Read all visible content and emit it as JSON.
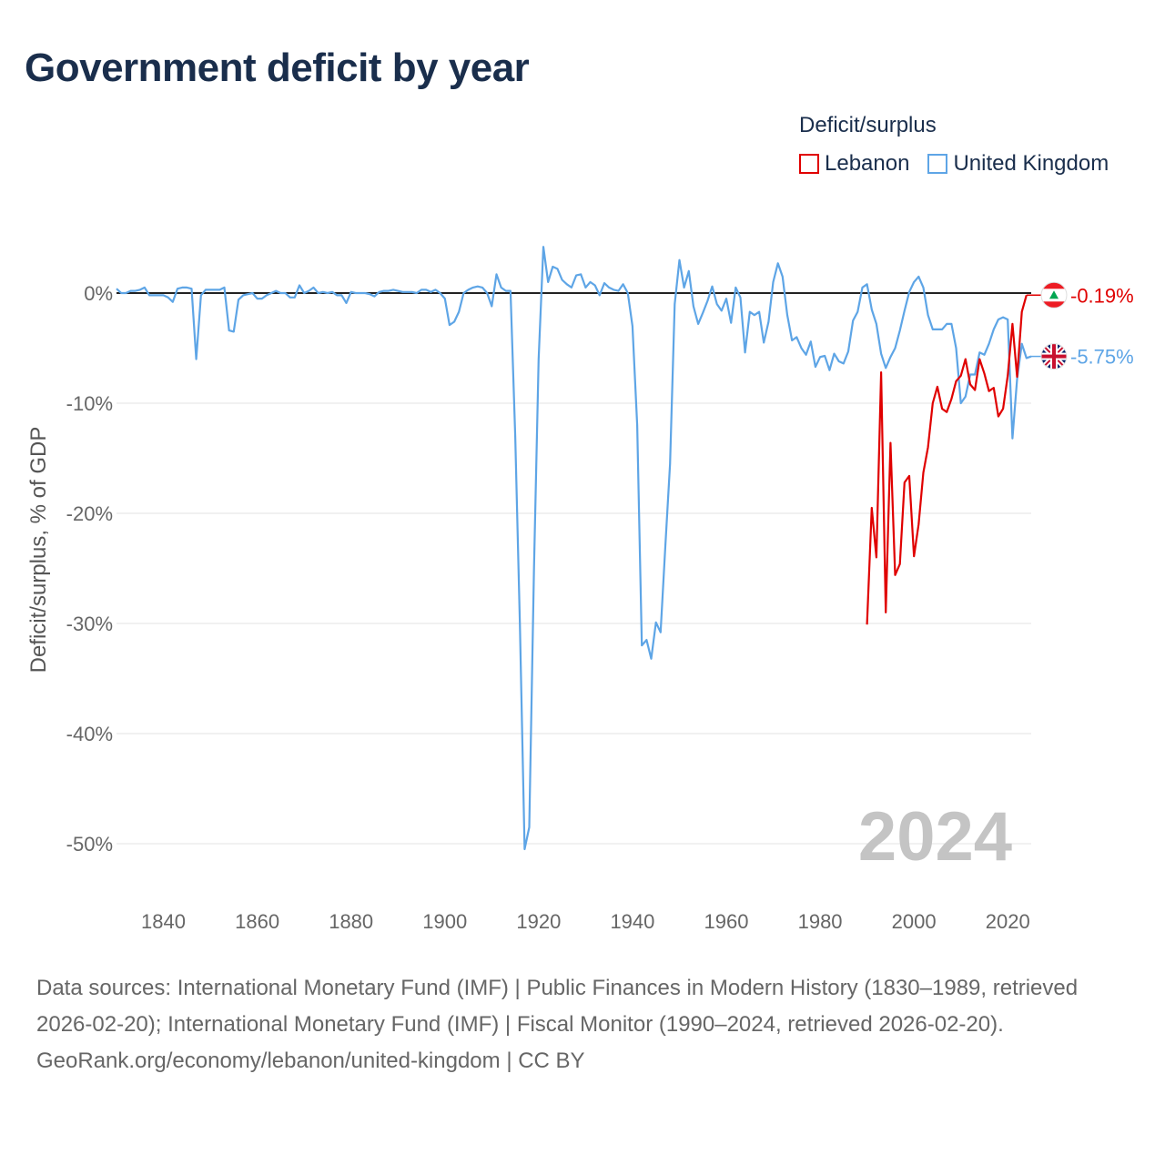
{
  "title": "Government deficit by year",
  "legend": {
    "title": "Deficit/surplus",
    "items": [
      {
        "label": "Lebanon",
        "color": "#e00000"
      },
      {
        "label": "United Kingdom",
        "color": "#5ea5e6"
      }
    ]
  },
  "footer": {
    "sources": "Data sources: International Monetary Fund (IMF) | Public Finances in Modern History (1830–1989, retrieved 2026-02-20); International Monetary Fund (IMF) | Fiscal Monitor (1990–2024, retrieved 2026-02-20).",
    "credit": "GeoRank.org/economy/lebanon/united-kingdom | CC BY"
  },
  "chart_data": {
    "type": "line",
    "title": "Government deficit by year",
    "xlabel": "",
    "ylabel": "Deficit/surplus, % of GDP",
    "xlim": [
      1830,
      2025
    ],
    "ylim": [
      -55,
      5
    ],
    "xticks": [
      1840,
      1860,
      1880,
      1900,
      1920,
      1940,
      1960,
      1980,
      2000,
      2020
    ],
    "xtick_labels": [
      "1840",
      "1860",
      "1880",
      "1900",
      "1920",
      "1940",
      "1960",
      "1980",
      "2000",
      "2020"
    ],
    "yticks": [
      0,
      -10,
      -20,
      -30,
      -40,
      -50
    ],
    "ytick_labels": [
      "0%",
      "-10%",
      "-20%",
      "-30%",
      "-40%",
      "-50%"
    ],
    "grid": true,
    "year_watermark": "2024",
    "series": [
      {
        "name": "United Kingdom",
        "color": "#5ea5e6",
        "end_label": "-5.75%",
        "flag": "united-kingdom-flag-icon",
        "x_start": 1830,
        "values": [
          0.4,
          0.0,
          0.0,
          0.2,
          0.2,
          0.3,
          0.5,
          -0.2,
          -0.2,
          -0.2,
          -0.2,
          -0.4,
          -0.8,
          0.4,
          0.5,
          0.5,
          0.4,
          -6.0,
          -0.2,
          0.3,
          0.3,
          0.3,
          0.3,
          0.5,
          -3.4,
          -3.5,
          -0.6,
          -0.2,
          -0.1,
          0.0,
          -0.5,
          -0.5,
          -0.2,
          0.0,
          0.2,
          0.0,
          0.0,
          -0.4,
          -0.4,
          0.7,
          0.0,
          0.2,
          0.5,
          0.0,
          0.1,
          0.0,
          0.1,
          -0.2,
          -0.2,
          -0.9,
          0.1,
          0.0,
          0.0,
          0.0,
          -0.1,
          -0.3,
          0.1,
          0.2,
          0.2,
          0.3,
          0.2,
          0.1,
          0.1,
          0.1,
          0.0,
          0.3,
          0.3,
          0.1,
          0.3,
          0.0,
          -0.5,
          -2.9,
          -2.6,
          -1.7,
          0.0,
          0.3,
          0.5,
          0.6,
          0.5,
          0.0,
          -1.2,
          1.7,
          0.5,
          0.2,
          0.2,
          -13.0,
          -30.0,
          -50.5,
          -48.5,
          -25.0,
          -6.0,
          4.2,
          1.0,
          2.4,
          2.2,
          1.2,
          0.8,
          0.5,
          1.6,
          1.7,
          0.5,
          1.0,
          0.7,
          -0.2,
          0.9,
          0.5,
          0.3,
          0.2,
          0.8,
          0.0,
          -3.0,
          -12.0,
          -32.0,
          -31.5,
          -33.2,
          -29.9,
          -30.8,
          -23.0,
          -15.5,
          -1.0,
          3.0,
          0.5,
          2.0,
          -1.2,
          -2.8,
          -1.8,
          -0.7,
          0.6,
          -1.0,
          -1.6,
          -0.5,
          -2.7,
          0.5,
          -0.4,
          -5.4,
          -1.7,
          -2.0,
          -1.7,
          -4.5,
          -2.6,
          1.0,
          2.7,
          1.5,
          -2.0,
          -4.3,
          -4.0,
          -5.0,
          -5.6,
          -4.4,
          -6.7,
          -5.8,
          -5.7,
          -7.0,
          -5.5,
          -6.2,
          -6.4,
          -5.3,
          -2.5,
          -1.7,
          0.5,
          0.8,
          -1.5,
          -2.8,
          -5.5,
          -6.8,
          -5.8,
          -5.0,
          -3.4,
          -1.6,
          0.1,
          1.0,
          1.5,
          0.5,
          -2.0,
          -3.3,
          -3.3,
          -3.3,
          -2.8,
          -2.8,
          -5.0,
          -10.0,
          -9.4,
          -7.4,
          -7.4,
          -5.4,
          -5.6,
          -4.6,
          -3.3,
          -2.4,
          -2.2,
          -2.4,
          -13.2,
          -7.8,
          -4.6,
          -5.9,
          -5.75
        ]
      },
      {
        "name": "Lebanon",
        "color": "#e00000",
        "end_label": "-0.19%",
        "flag": "lebanon-flag-icon",
        "x_start": 1990,
        "values": [
          -30.1,
          -19.5,
          -24.0,
          -7.2,
          -29.0,
          -13.6,
          -25.6,
          -24.6,
          -17.2,
          -16.6,
          -23.9,
          -21.0,
          -16.3,
          -14.0,
          -10.0,
          -8.5,
          -10.5,
          -10.8,
          -9.6,
          -8.0,
          -7.5,
          -6.0,
          -8.3,
          -8.8,
          -6.0,
          -7.3,
          -8.9,
          -8.6,
          -11.2,
          -10.5,
          -7.5,
          -2.8,
          -7.6,
          -1.7,
          -0.19
        ]
      }
    ]
  }
}
